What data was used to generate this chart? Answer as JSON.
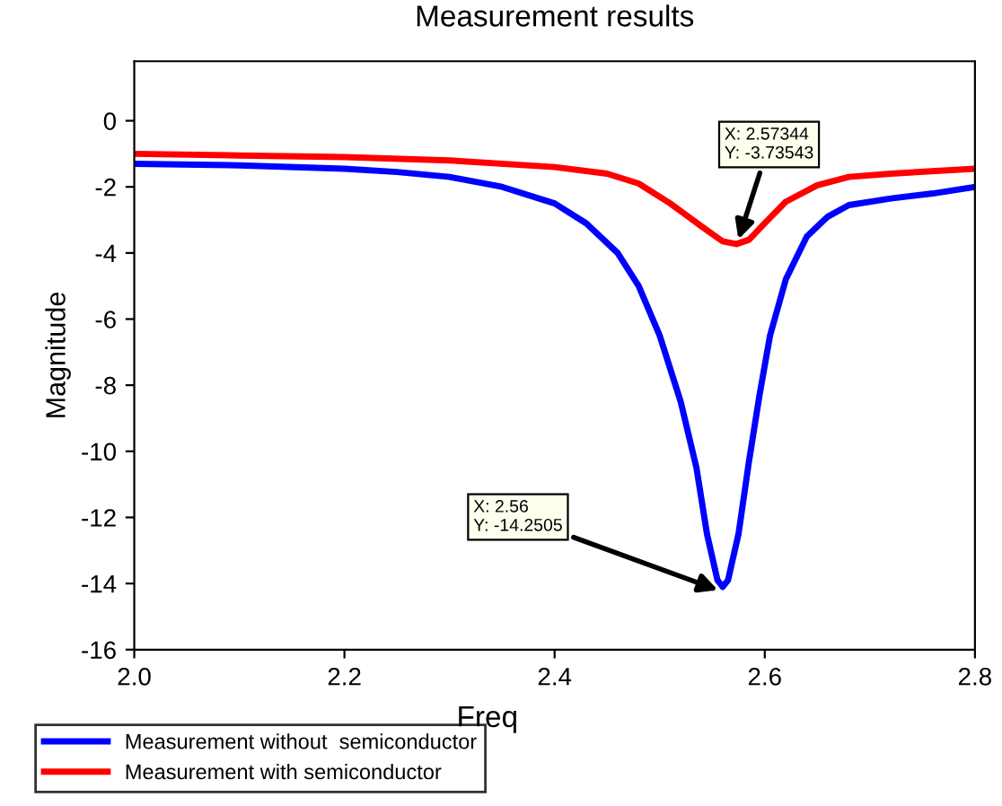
{
  "chart_data": {
    "type": "line",
    "title": "Measurement results",
    "xlabel": "Freq",
    "ylabel": "Magnitude",
    "series": [
      {
        "name": "Measurement without  semiconductor",
        "color": "#0000ff",
        "x": [
          2.0,
          2.1,
          2.2,
          2.25,
          2.3,
          2.35,
          2.4,
          2.43,
          2.46,
          2.48,
          2.5,
          2.52,
          2.535,
          2.545,
          2.555,
          2.56,
          2.565,
          2.575,
          2.585,
          2.595,
          2.605,
          2.62,
          2.64,
          2.66,
          2.68,
          2.72,
          2.76,
          2.8
        ],
        "values": [
          -1.3,
          -1.35,
          -1.45,
          -1.55,
          -1.7,
          -2.0,
          -2.5,
          -3.1,
          -4.0,
          -5.0,
          -6.5,
          -8.5,
          -10.5,
          -12.5,
          -13.9,
          -14.1,
          -13.9,
          -12.5,
          -10.3,
          -8.3,
          -6.5,
          -4.8,
          -3.5,
          -2.9,
          -2.55,
          -2.35,
          -2.2,
          -2.0
        ]
      },
      {
        "name": "Measurement with semiconductor",
        "color": "#ff0000",
        "x": [
          2.0,
          2.1,
          2.2,
          2.3,
          2.4,
          2.45,
          2.48,
          2.51,
          2.54,
          2.56,
          2.573,
          2.585,
          2.6,
          2.62,
          2.65,
          2.68,
          2.72,
          2.8
        ],
        "values": [
          -1.0,
          -1.05,
          -1.1,
          -1.2,
          -1.4,
          -1.6,
          -1.9,
          -2.5,
          -3.2,
          -3.65,
          -3.73,
          -3.6,
          -3.1,
          -2.45,
          -1.95,
          -1.7,
          -1.6,
          -1.45
        ]
      }
    ],
    "annotations": [
      {
        "text": "X: 2.57344\nY: -3.73543",
        "x": 2.57344,
        "y": -3.73543
      },
      {
        "text": "X: 2.56\nY: -14.2505",
        "x": 2.56,
        "y": -14.2505
      }
    ],
    "xlim": [
      2.0,
      2.8
    ],
    "xticks": [
      {
        "value": 2.0,
        "label": "2.0"
      },
      2.2,
      2.4,
      2.6,
      2.8
    ],
    "ylim": [
      -16,
      1.8
    ],
    "yticks": [
      -16,
      -14,
      -12,
      -10,
      -8,
      -6,
      -4,
      -2,
      0
    ],
    "grid": false,
    "legend": "bottom left",
    "marker": "none",
    "line_style": "solid"
  }
}
